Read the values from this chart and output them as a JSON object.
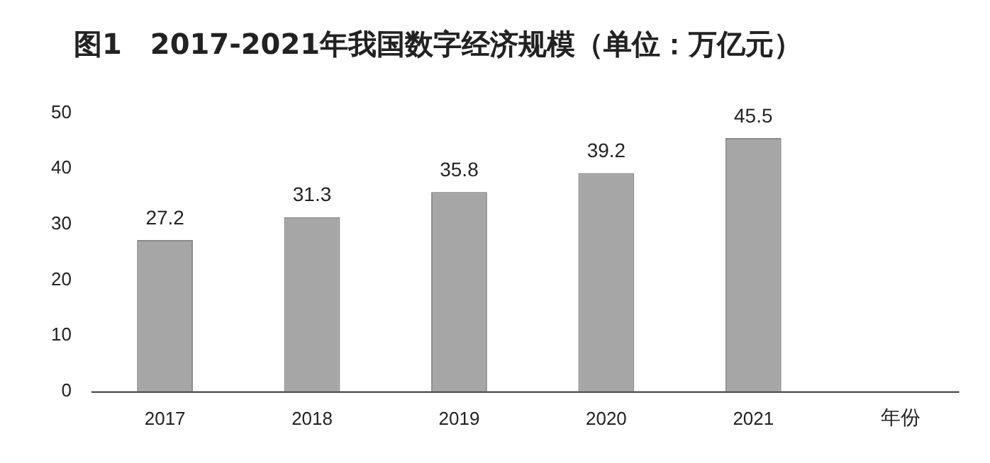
{
  "chart_data": {
    "type": "bar",
    "title": "图1　2017-2021年我国数字经济规模（单位：万亿元）",
    "xlabel": "年份",
    "categories": [
      "2017",
      "2018",
      "2019",
      "2020",
      "2021"
    ],
    "values": [
      27.2,
      31.3,
      35.8,
      39.2,
      45.5
    ],
    "color": "#a6a6a6",
    "ylim": [
      0,
      50
    ],
    "yticks": [
      0,
      10,
      20,
      30,
      40,
      50
    ],
    "grid": false,
    "legend": false,
    "data_labels": true
  }
}
